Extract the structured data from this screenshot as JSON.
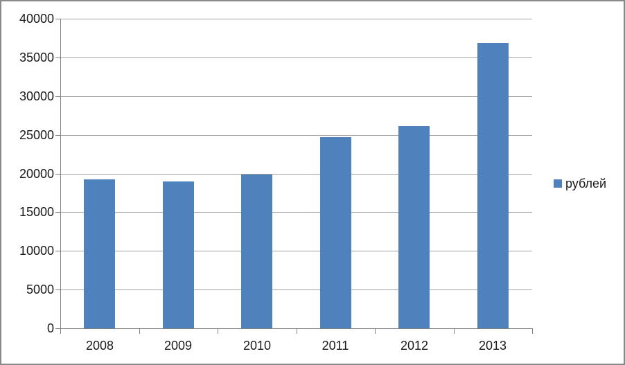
{
  "chart_data": {
    "type": "bar",
    "title": "",
    "xlabel": "",
    "ylabel": "",
    "categories": [
      "2008",
      "2009",
      "2010",
      "2011",
      "2012",
      "2013"
    ],
    "series": [
      {
        "name": "рублей",
        "values": [
          19200,
          19000,
          19900,
          24700,
          26100,
          36900
        ]
      }
    ],
    "ylim": [
      0,
      40000
    ],
    "yticks": [
      0,
      5000,
      10000,
      15000,
      20000,
      25000,
      30000,
      35000,
      40000
    ],
    "grid": true,
    "legend_position": "right"
  },
  "colors": {
    "bar_fill": "#4f81bd",
    "gridline": "#a0a0a0",
    "axis": "#808080",
    "text": "#1a1a1a",
    "background": "#ffffff",
    "frame_border": "#898989"
  }
}
